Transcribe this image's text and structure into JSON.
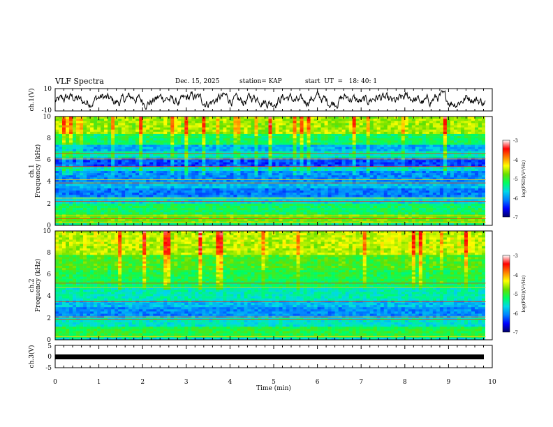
{
  "header": {
    "title": "VLF Spectra",
    "date": "Dec. 15, 2025",
    "station": "station= KAP",
    "start_ut": "start  UT  =   18: 40: 1"
  },
  "colors": {
    "cmap": [
      "#000066",
      "#0000ff",
      "#0080ff",
      "#00d8e8",
      "#00ff60",
      "#66e000",
      "#ffff00",
      "#ff8000",
      "#ff0000",
      "#ffffff"
    ]
  },
  "chart_data": [
    {
      "type": "line",
      "name": "ch1-waveform",
      "ylabel": "ch.1(V)",
      "ylim": [
        -10,
        10
      ],
      "yticks": [
        "10",
        "-10"
      ],
      "x_range_min": [
        0,
        9.85
      ],
      "description_amplitude_v": 4
    },
    {
      "type": "heatmap",
      "name": "ch1-spectrogram",
      "ylabel_line1": "ch.1",
      "ylabel_line2": "Frequency (kHz)",
      "ylim_khz": [
        0,
        10
      ],
      "yticks": [
        "0",
        "2",
        "4",
        "6",
        "8",
        "10"
      ],
      "colorbar": {
        "label": "log(PSD)(V²/Hz)",
        "range": [
          -7,
          -3
        ],
        "ticks": [
          "-3",
          "-4",
          "-5",
          "-6",
          "-7"
        ]
      },
      "bands_khz": [
        {
          "lo": 0.0,
          "hi": 0.25,
          "level": 0.42
        },
        {
          "lo": 0.25,
          "hi": 1.0,
          "level": 0.55
        },
        {
          "lo": 1.0,
          "hi": 1.9,
          "level": 0.45
        },
        {
          "lo": 1.9,
          "hi": 2.6,
          "level": 0.34
        },
        {
          "lo": 2.6,
          "hi": 3.4,
          "level": 0.22
        },
        {
          "lo": 3.4,
          "hi": 4.1,
          "level": 0.3
        },
        {
          "lo": 4.1,
          "hi": 5.0,
          "level": 0.24
        },
        {
          "lo": 5.0,
          "hi": 5.5,
          "level": 0.35
        },
        {
          "lo": 5.5,
          "hi": 6.3,
          "level": 0.17
        },
        {
          "lo": 6.3,
          "hi": 6.8,
          "level": 0.38
        },
        {
          "lo": 6.8,
          "hi": 7.5,
          "level": 0.28
        },
        {
          "lo": 7.5,
          "hi": 8.3,
          "level": 0.45
        },
        {
          "lo": 8.3,
          "hi": 10.0,
          "level": 0.6
        }
      ],
      "lines_khz": [
        0.3,
        0.6,
        0.9,
        2.2,
        2.5,
        3.9,
        4.2,
        5.4,
        6.1,
        6.6
      ]
    },
    {
      "type": "heatmap",
      "name": "ch2-spectrogram",
      "ylabel_line1": "ch.2",
      "ylabel_line2": "Frequency (kHz)",
      "ylim_khz": [
        0,
        10
      ],
      "yticks": [
        "0",
        "2",
        "4",
        "6",
        "8",
        "10"
      ],
      "colorbar": {
        "label": "log(PSD)(V²/Hz)",
        "range": [
          -7,
          -3
        ],
        "ticks": [
          "-3",
          "-4",
          "-5",
          "-6",
          "-7"
        ]
      },
      "bands_khz": [
        {
          "lo": 0.0,
          "hi": 0.3,
          "level": 0.35
        },
        {
          "lo": 0.3,
          "hi": 1.3,
          "level": 0.48
        },
        {
          "lo": 1.3,
          "hi": 2.0,
          "level": 0.36
        },
        {
          "lo": 2.0,
          "hi": 3.0,
          "level": 0.24
        },
        {
          "lo": 3.0,
          "hi": 3.6,
          "level": 0.3
        },
        {
          "lo": 3.6,
          "hi": 4.7,
          "level": 0.38
        },
        {
          "lo": 4.7,
          "hi": 5.3,
          "level": 0.44
        },
        {
          "lo": 5.3,
          "hi": 6.5,
          "level": 0.47
        },
        {
          "lo": 6.5,
          "hi": 7.8,
          "level": 0.52
        },
        {
          "lo": 7.8,
          "hi": 10.0,
          "level": 0.62
        }
      ],
      "lines_khz": [
        0.3,
        1.9,
        2.1,
        3.5,
        4.8,
        5.2
      ]
    },
    {
      "type": "line",
      "name": "ch3-trace",
      "ylabel": "ch.3(V)",
      "ylim": [
        -5,
        5
      ],
      "yticks": [
        "5",
        "0",
        "-5"
      ],
      "constant_value_v": 0,
      "x_range_min": [
        0,
        9.85
      ]
    }
  ],
  "xaxis": {
    "xlabel": "Time  (min)",
    "xlim": [
      0,
      10
    ],
    "ticks": [
      "0",
      "1",
      "2",
      "3",
      "4",
      "5",
      "6",
      "7",
      "8",
      "9",
      "10"
    ]
  }
}
